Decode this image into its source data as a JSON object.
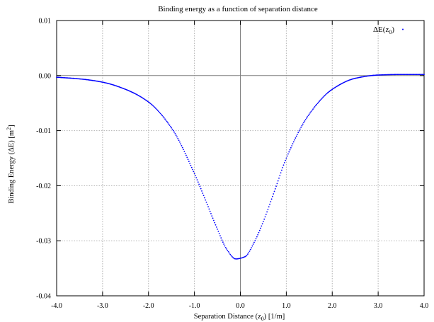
{
  "chart_data": {
    "type": "scatter",
    "title": "Binding energy as a function of separation distance",
    "xlabel": {
      "main": "Separation Distance (z",
      "sub": "0",
      "tail": ") [1/m]"
    },
    "ylabel": {
      "main": "Binding Energy (ΔE) [m",
      "sup": "2",
      "tail": "]"
    },
    "xlim": [
      -4.0,
      4.0
    ],
    "ylim": [
      -0.04,
      0.01
    ],
    "xticks": [
      -4.0,
      -3.0,
      -2.0,
      -1.0,
      0.0,
      1.0,
      2.0,
      3.0,
      4.0
    ],
    "xtick_labels": [
      "-4.0",
      "-3.0",
      "-2.0",
      "-1.0",
      "0.0",
      "1.0",
      "2.0",
      "3.0",
      "4.0"
    ],
    "yticks": [
      0.01,
      0.0,
      -0.01,
      -0.02,
      -0.03,
      -0.04
    ],
    "ytick_labels": [
      "0.01",
      "0.00",
      "-0.01",
      "-0.02",
      "-0.03",
      "-0.04"
    ],
    "grid": true,
    "legend_position": "top-right",
    "series": [
      {
        "name": {
          "main": "ΔE(z",
          "sub": "0",
          "tail": ")"
        },
        "color": "#0000ff",
        "marker": "dot",
        "x": [
          -4.0,
          -3.5,
          -3.0,
          -2.5,
          -2.0,
          -1.5,
          -1.0,
          -0.75,
          -0.5,
          -0.3,
          -0.1,
          0.1,
          0.3,
          0.5,
          0.75,
          1.0,
          1.5,
          2.0,
          2.5,
          3.0,
          3.5,
          4.0
        ],
        "y": [
          -0.0003,
          -0.0006,
          -0.0012,
          -0.0025,
          -0.0048,
          -0.0095,
          -0.0178,
          -0.0228,
          -0.0279,
          -0.0315,
          -0.0333,
          -0.0329,
          -0.0303,
          -0.0265,
          -0.0208,
          -0.015,
          -0.007,
          -0.0025,
          -0.0005,
          0.0001,
          0.0002,
          0.0002
        ]
      }
    ]
  }
}
